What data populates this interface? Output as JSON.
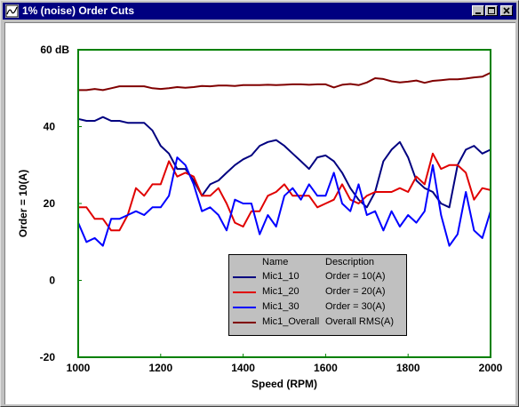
{
  "window": {
    "title": "1% (noise) Order Cuts",
    "icon": "chart-app-icon",
    "buttons": {
      "minimize": "minimize-icon",
      "maximize": "maximize-icon",
      "close": "close-icon"
    }
  },
  "colors": {
    "frame": "#008000",
    "Mic1_10": "#000080",
    "Mic1_20": "#e00000",
    "Mic1_30": "#0000ff",
    "Mic1_Overall": "#800000"
  },
  "legend": {
    "header_name": "Name",
    "header_desc": "Description",
    "rows": [
      {
        "name": "Mic1_10",
        "desc": "Order = 10(A)"
      },
      {
        "name": "Mic1_20",
        "desc": "Order = 20(A)"
      },
      {
        "name": "Mic1_30",
        "desc": "Order = 30(A)"
      },
      {
        "name": "Mic1_Overall",
        "desc": "Overall RMS(A)"
      }
    ]
  },
  "chart_data": {
    "type": "line",
    "xlabel": "Speed (RPM)",
    "ylabel": "Order = 10(A)",
    "xlim": [
      1000,
      2000
    ],
    "ylim": [
      -20,
      60
    ],
    "xticks": [
      "1000",
      "1200",
      "1400",
      "1600",
      "1800",
      "2000"
    ],
    "yticks": [
      "-20",
      "0",
      "20",
      "40",
      "60 dB"
    ],
    "grid": false,
    "legend_position": "bottom-center",
    "series": [
      {
        "name": "Mic1_10",
        "color": "#000080",
        "x": [
          1000,
          1020,
          1040,
          1060,
          1080,
          1100,
          1120,
          1140,
          1160,
          1180,
          1200,
          1220,
          1240,
          1260,
          1280,
          1300,
          1320,
          1340,
          1360,
          1380,
          1400,
          1420,
          1440,
          1460,
          1480,
          1500,
          1520,
          1540,
          1560,
          1580,
          1600,
          1620,
          1640,
          1660,
          1680,
          1700,
          1720,
          1740,
          1760,
          1780,
          1800,
          1820,
          1840,
          1860,
          1880,
          1900,
          1920,
          1940,
          1960,
          1980,
          2000
        ],
        "y": [
          42,
          41.5,
          41.5,
          42.5,
          41.5,
          41.5,
          41,
          41,
          41,
          39,
          35,
          33,
          29,
          29,
          26,
          22,
          25,
          26,
          28,
          30,
          31.5,
          32.5,
          35,
          36,
          36.5,
          35,
          33,
          31,
          29,
          32,
          32.5,
          31,
          28,
          24,
          21,
          19,
          23,
          31,
          34,
          36,
          32,
          26,
          24,
          23,
          20,
          19,
          30,
          34,
          35,
          33,
          34
        ]
      },
      {
        "name": "Mic1_20",
        "color": "#e00000",
        "x": [
          1000,
          1020,
          1040,
          1060,
          1080,
          1100,
          1120,
          1140,
          1160,
          1180,
          1200,
          1220,
          1240,
          1260,
          1280,
          1300,
          1320,
          1340,
          1360,
          1380,
          1400,
          1420,
          1440,
          1460,
          1480,
          1500,
          1520,
          1540,
          1560,
          1580,
          1600,
          1620,
          1640,
          1660,
          1680,
          1700,
          1720,
          1740,
          1760,
          1780,
          1800,
          1820,
          1840,
          1860,
          1880,
          1900,
          1920,
          1940,
          1960,
          1980,
          2000
        ],
        "y": [
          19,
          19,
          16,
          16,
          13,
          13,
          17,
          24,
          22,
          25,
          25,
          31,
          27,
          28,
          27,
          22,
          22,
          24,
          20,
          15,
          14,
          18,
          18,
          22,
          23,
          25,
          22,
          22,
          22,
          19,
          20,
          21,
          25,
          21,
          20,
          22,
          23,
          23,
          23,
          24,
          23,
          27,
          25,
          33,
          29,
          30,
          30,
          28,
          21,
          24,
          23.5
        ]
      },
      {
        "name": "Mic1_30",
        "color": "#0000ff",
        "x": [
          1000,
          1020,
          1040,
          1060,
          1080,
          1100,
          1120,
          1140,
          1160,
          1180,
          1200,
          1220,
          1240,
          1260,
          1280,
          1300,
          1320,
          1340,
          1360,
          1380,
          1400,
          1420,
          1440,
          1460,
          1480,
          1500,
          1520,
          1540,
          1560,
          1580,
          1600,
          1620,
          1640,
          1660,
          1680,
          1700,
          1720,
          1740,
          1760,
          1780,
          1800,
          1820,
          1840,
          1860,
          1880,
          1900,
          1920,
          1940,
          1960,
          1980,
          2000
        ],
        "y": [
          15,
          10,
          11,
          9,
          16,
          16,
          17,
          18,
          17,
          19,
          19,
          22,
          32,
          30,
          25,
          18,
          19,
          17,
          13,
          21,
          20,
          20,
          12,
          17,
          14,
          22,
          24,
          21,
          25,
          22,
          22,
          28,
          20,
          18,
          25,
          17,
          18,
          13,
          18,
          14,
          17,
          15,
          18,
          30,
          17,
          9,
          12,
          23,
          13,
          11,
          18
        ]
      },
      {
        "name": "Mic1_Overall",
        "color": "#800000",
        "x": [
          1000,
          1020,
          1040,
          1060,
          1080,
          1100,
          1120,
          1140,
          1160,
          1180,
          1200,
          1220,
          1240,
          1260,
          1280,
          1300,
          1320,
          1340,
          1360,
          1380,
          1400,
          1420,
          1440,
          1460,
          1480,
          1500,
          1520,
          1540,
          1560,
          1580,
          1600,
          1620,
          1640,
          1660,
          1680,
          1700,
          1720,
          1740,
          1760,
          1780,
          1800,
          1820,
          1840,
          1860,
          1880,
          1900,
          1920,
          1940,
          1960,
          1980,
          2000
        ],
        "y": [
          49.5,
          49.5,
          49.8,
          49.5,
          50,
          50.5,
          50.5,
          50.5,
          50.5,
          50,
          49.8,
          50,
          50.3,
          50.1,
          50.3,
          50.6,
          50.5,
          50.7,
          50.7,
          50.6,
          50.8,
          50.8,
          50.8,
          50.9,
          50.8,
          50.9,
          51,
          51,
          50.9,
          51,
          51,
          50.2,
          50.9,
          51.1,
          50.8,
          51.5,
          52.6,
          52.4,
          51.8,
          51.5,
          51.7,
          52,
          51.4,
          51.9,
          52.1,
          52.3,
          52.3,
          52.5,
          52.8,
          53,
          54
        ]
      }
    ]
  }
}
